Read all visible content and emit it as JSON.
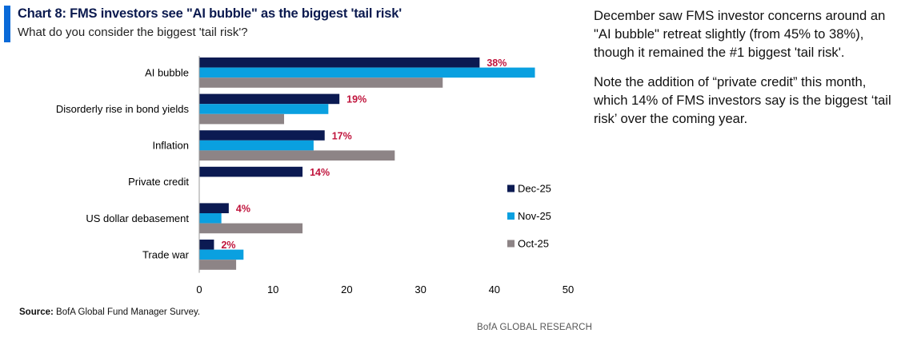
{
  "header": {
    "title": "Chart 8: FMS investors see \"AI bubble\" as the biggest 'tail risk'",
    "subtitle": "What do you consider the biggest 'tail risk'?"
  },
  "chart_data": {
    "type": "bar",
    "orientation": "horizontal",
    "title": "Chart 8: FMS investors see \"AI bubble\" as the biggest 'tail risk'",
    "subtitle": "What do you consider the biggest 'tail risk'?",
    "categories": [
      "AI bubble",
      "Disorderly rise in bond yields",
      "Inflation",
      "Private credit",
      "US dollar debasement",
      "Trade war"
    ],
    "series": [
      {
        "name": "Dec-25",
        "color": "#0b1a52",
        "values": [
          38,
          19,
          17,
          14,
          4,
          2
        ]
      },
      {
        "name": "Nov-25",
        "color": "#0aa0e0",
        "values": [
          45.5,
          17.5,
          15.5,
          null,
          3,
          6
        ]
      },
      {
        "name": "Oct-25",
        "color": "#8d8486",
        "values": [
          33,
          11.5,
          26.5,
          null,
          14,
          5
        ]
      }
    ],
    "data_labels": [
      "38%",
      "19%",
      "17%",
      "14%",
      "4%",
      "2%"
    ],
    "xlim": [
      0,
      50
    ],
    "xticks": [
      0,
      10,
      20,
      30,
      40,
      50
    ],
    "xlabel": "",
    "ylabel": "",
    "legend_position": "right",
    "grid": false
  },
  "source": {
    "label": "Source:",
    "text": "BofA Global Fund Manager Survey."
  },
  "footer": {
    "brand": "BofA GLOBAL RESEARCH"
  },
  "commentary": {
    "paragraphs": [
      "December saw FMS investor concerns around an \"AI bubble\" retreat slightly (from 45% to 38%), though it remained the #1 biggest 'tail risk'.",
      "Note the addition of “private credit” this month, which 14% of FMS investors say is the biggest ‘tail risk’ over the coming year."
    ]
  }
}
